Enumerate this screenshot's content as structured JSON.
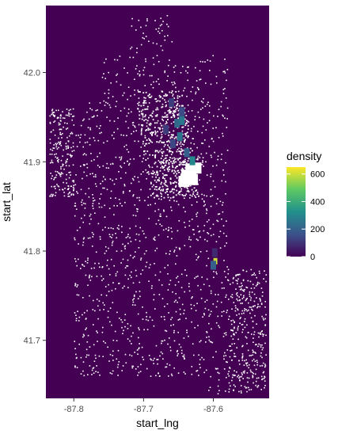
{
  "chart_data": {
    "type": "heatmap",
    "title": "",
    "xlabel": "start_lng",
    "ylabel": "start_lat",
    "xlim": [
      -87.84,
      -87.52
    ],
    "ylim": [
      41.635,
      42.075
    ],
    "xticks": [
      -87.8,
      -87.7,
      -87.6
    ],
    "xtick_labels": [
      "-87.8",
      "-87.7",
      "-87.6"
    ],
    "yticks": [
      41.7,
      41.8,
      41.9,
      42.0
    ],
    "ytick_labels": [
      "41.7",
      "41.8",
      "41.9",
      "42.0"
    ],
    "grid": false,
    "background_color": "#440154",
    "legend": {
      "title": "density",
      "placement": "right",
      "min": 0,
      "max": 650,
      "ticks": [
        0,
        200,
        400,
        600
      ],
      "tick_labels": [
        "0",
        "200",
        "400",
        "600"
      ],
      "colors": [
        "#440154",
        "#3b528b",
        "#21908c",
        "#5dc963",
        "#fde725"
      ]
    },
    "hotspots": [
      {
        "lng": -87.638,
        "lat": 41.885,
        "density": 1000,
        "note": "saturated (white) core"
      },
      {
        "lng": -87.632,
        "lat": 41.892,
        "density": 1000
      },
      {
        "lng": -87.625,
        "lat": 41.893,
        "density": 1000
      },
      {
        "lng": -87.642,
        "lat": 41.878,
        "density": 1000
      },
      {
        "lng": -87.63,
        "lat": 41.88,
        "density": 1000
      },
      {
        "lng": -87.597,
        "lat": 41.79,
        "density": 600
      },
      {
        "lng": -87.6,
        "lat": 41.786,
        "density": 200
      },
      {
        "lng": -87.648,
        "lat": 41.93,
        "density": 250
      },
      {
        "lng": -87.652,
        "lat": 41.945,
        "density": 220
      },
      {
        "lng": -87.645,
        "lat": 41.958,
        "density": 150
      },
      {
        "lng": -87.66,
        "lat": 41.968,
        "density": 120
      },
      {
        "lng": -87.638,
        "lat": 41.912,
        "density": 200
      },
      {
        "lng": -87.658,
        "lat": 41.922,
        "density": 140
      },
      {
        "lng": -87.668,
        "lat": 41.938,
        "density": 120
      },
      {
        "lng": -87.63,
        "lat": 41.903,
        "density": 300
      },
      {
        "lng": -87.645,
        "lat": 41.948,
        "density": 260
      },
      {
        "lng": -87.598,
        "lat": 41.8,
        "density": 80
      }
    ]
  }
}
